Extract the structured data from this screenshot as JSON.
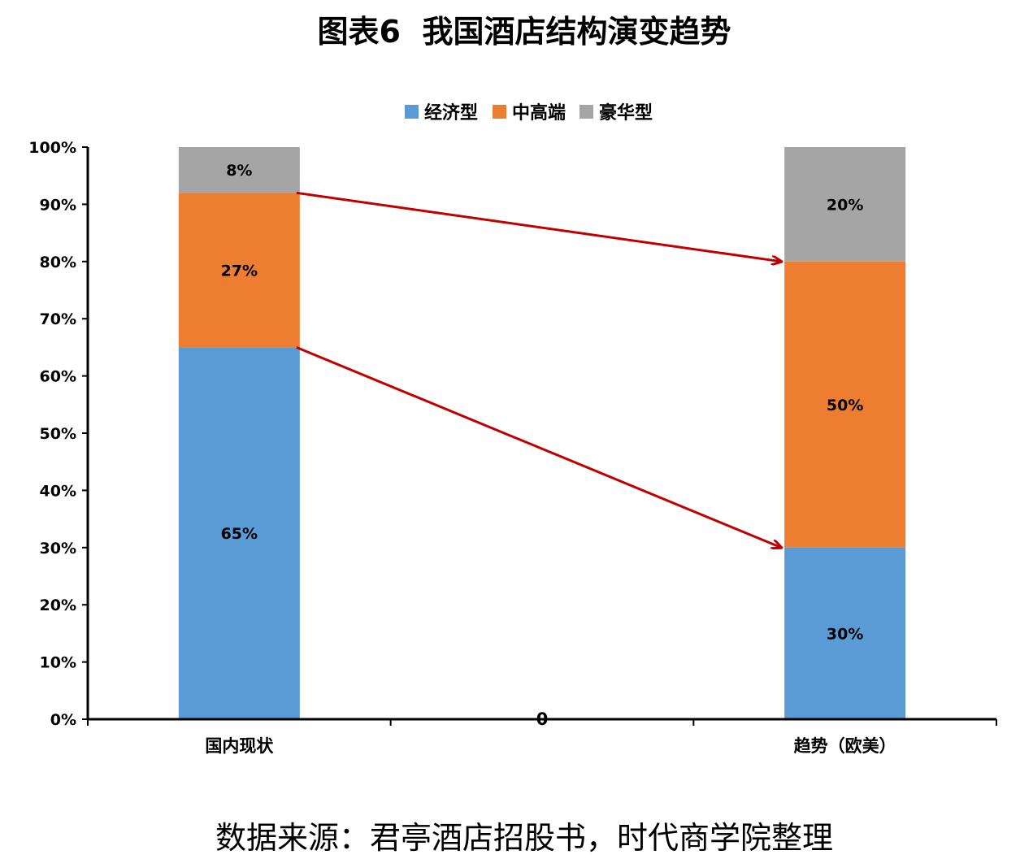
{
  "chart_data": {
    "type": "bar",
    "stacked": true,
    "title": "图表6  我国酒店结构演变趋势",
    "categories": [
      "国内现状",
      "0",
      "趋势（欧美）"
    ],
    "series": [
      {
        "name": "经济型",
        "values": [
          65,
          null,
          30
        ],
        "labels": [
          "65%",
          "",
          "30%"
        ],
        "color": "#5B9BD5"
      },
      {
        "name": "中高端",
        "values": [
          27,
          null,
          50
        ],
        "labels": [
          "27%",
          "",
          "50%"
        ],
        "color": "#ED7D31"
      },
      {
        "name": "豪华型",
        "values": [
          8,
          null,
          20
        ],
        "labels": [
          "8%",
          "",
          "20%"
        ],
        "color": "#A5A5A5"
      }
    ],
    "yticks": [
      "0%",
      "10%",
      "20%",
      "30%",
      "40%",
      "50%",
      "60%",
      "70%",
      "80%",
      "90%",
      "100%"
    ],
    "ylim": [
      0,
      100
    ],
    "legend": "top",
    "grid": false,
    "arrow_color": "#C00000",
    "arrows": [
      {
        "from_category": 0,
        "from_value": 92,
        "to_category": 2,
        "to_value": 80
      },
      {
        "from_category": 0,
        "from_value": 65,
        "to_category": 2,
        "to_value": 30
      }
    ]
  },
  "source": "数据来源：君亭酒店招股书，时代商学院整理"
}
